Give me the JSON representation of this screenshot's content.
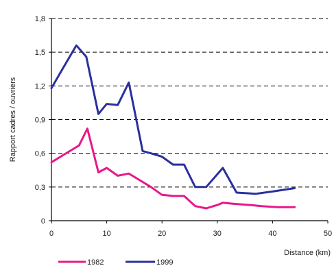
{
  "chart_data": {
    "type": "line",
    "xlabel": "Distance (km)",
    "ylabel": "Rapport cadres / ouvriers",
    "xlim": [
      0,
      50
    ],
    "ylim": [
      0,
      1.8
    ],
    "x_ticks": [
      "0",
      "10",
      "20",
      "30",
      "40",
      "50"
    ],
    "y_ticks": [
      "0",
      "0,3",
      "0,6",
      "0,9",
      "1,2",
      "1,5",
      "1,8"
    ],
    "grid": "horizontal dashed",
    "legend_position": "bottom",
    "series": [
      {
        "name": "1982",
        "color": "#e8188a",
        "points": [
          [
            0,
            0.52
          ],
          [
            2,
            0.58
          ],
          [
            4,
            0.64
          ],
          [
            5,
            0.67
          ],
          [
            6.5,
            0.82
          ],
          [
            8.5,
            0.43
          ],
          [
            10,
            0.47
          ],
          [
            12,
            0.4
          ],
          [
            14,
            0.42
          ],
          [
            16,
            0.36
          ],
          [
            18,
            0.3
          ],
          [
            20,
            0.23
          ],
          [
            22,
            0.22
          ],
          [
            24,
            0.22
          ],
          [
            26,
            0.13
          ],
          [
            28,
            0.11
          ],
          [
            30,
            0.14
          ],
          [
            31,
            0.16
          ],
          [
            33,
            0.15
          ],
          [
            36,
            0.14
          ],
          [
            38,
            0.13
          ],
          [
            41,
            0.12
          ],
          [
            44,
            0.12
          ]
        ]
      },
      {
        "name": "1999",
        "color": "#2b2f9e",
        "points": [
          [
            0,
            1.18
          ],
          [
            2,
            1.35
          ],
          [
            4.5,
            1.56
          ],
          [
            6.3,
            1.46
          ],
          [
            8.5,
            0.95
          ],
          [
            10,
            1.04
          ],
          [
            12,
            1.03
          ],
          [
            14,
            1.23
          ],
          [
            16.5,
            0.62
          ],
          [
            18,
            0.6
          ],
          [
            20,
            0.57
          ],
          [
            22,
            0.5
          ],
          [
            24,
            0.5
          ],
          [
            26,
            0.3
          ],
          [
            28,
            0.3
          ],
          [
            31,
            0.47
          ],
          [
            33.5,
            0.25
          ],
          [
            37,
            0.24
          ],
          [
            40,
            0.26
          ],
          [
            44,
            0.29
          ]
        ]
      }
    ]
  }
}
